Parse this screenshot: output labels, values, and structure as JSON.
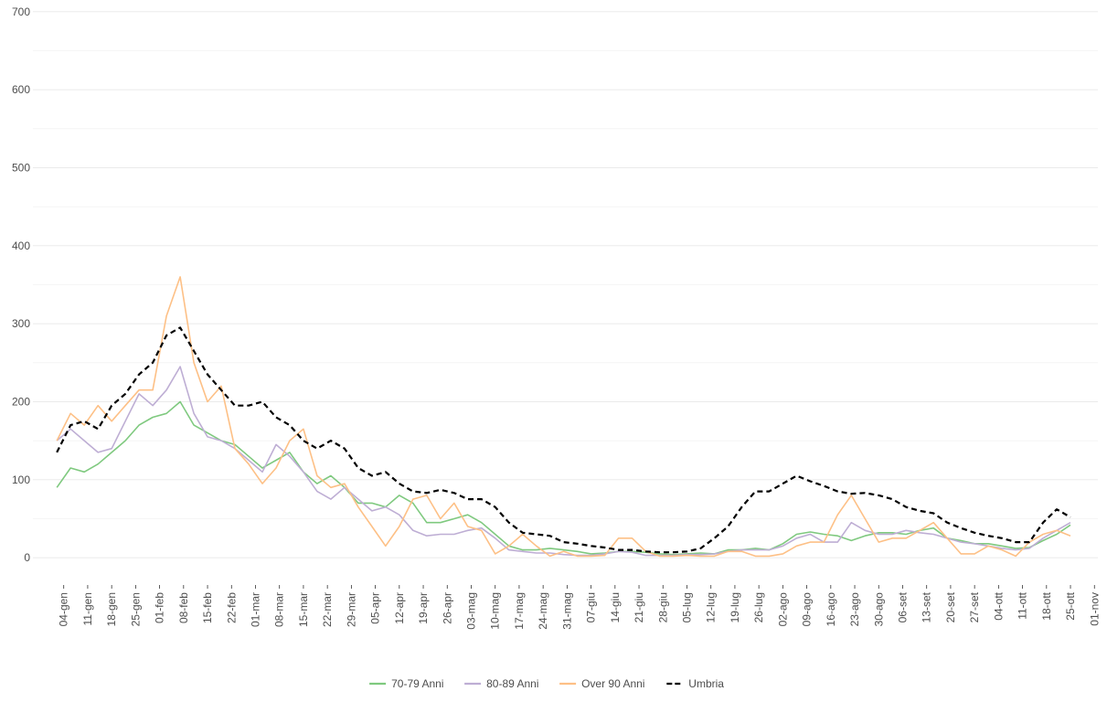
{
  "chart_data": {
    "type": "line",
    "x": [
      -2,
      2,
      6,
      10,
      14,
      18,
      22,
      26,
      30,
      34,
      38,
      42,
      46,
      50,
      54,
      58,
      62,
      66,
      70,
      74,
      78,
      82,
      86,
      90,
      94,
      98,
      102,
      106,
      110,
      114,
      118,
      122,
      126,
      130,
      134,
      138,
      142,
      146,
      150,
      154,
      158,
      162,
      166,
      170,
      174,
      178,
      182,
      186,
      190,
      194,
      198,
      202,
      206,
      210,
      214,
      218,
      222,
      226,
      230,
      234,
      238,
      242,
      246,
      250,
      254,
      258,
      262,
      266,
      270,
      274,
      278,
      282,
      286,
      290,
      294
    ],
    "series": [
      {
        "name": "70-79 Anni",
        "color": "#7fc97f",
        "linestyle": "solid",
        "values": [
          90,
          115,
          110,
          120,
          135,
          150,
          170,
          180,
          185,
          200,
          170,
          160,
          150,
          145,
          130,
          115,
          125,
          135,
          110,
          95,
          105,
          90,
          70,
          70,
          65,
          80,
          70,
          45,
          45,
          50,
          55,
          45,
          30,
          15,
          10,
          10,
          12,
          10,
          8,
          5,
          6,
          8,
          8,
          7,
          5,
          4,
          5,
          6,
          5,
          10,
          10,
          12,
          10,
          18,
          30,
          33,
          30,
          28,
          22,
          28,
          32,
          32,
          30,
          35,
          38,
          25,
          22,
          18,
          18,
          15,
          12,
          13,
          22,
          30,
          42
        ]
      },
      {
        "name": "80-89 Anni",
        "color": "#beaed4",
        "linestyle": "solid",
        "values": [
          150,
          165,
          150,
          135,
          140,
          175,
          210,
          195,
          215,
          245,
          185,
          155,
          150,
          140,
          125,
          110,
          145,
          130,
          110,
          85,
          75,
          90,
          75,
          60,
          65,
          55,
          35,
          28,
          30,
          30,
          35,
          38,
          25,
          10,
          8,
          6,
          6,
          4,
          3,
          3,
          5,
          8,
          7,
          3,
          3,
          3,
          4,
          4,
          5,
          8,
          10,
          10,
          10,
          15,
          25,
          30,
          20,
          20,
          45,
          35,
          30,
          30,
          35,
          32,
          30,
          25,
          20,
          18,
          15,
          12,
          10,
          12,
          25,
          35,
          45
        ]
      },
      {
        "name": "Over 90 Anni",
        "color": "#fdc086",
        "linestyle": "solid",
        "values": [
          150,
          185,
          170,
          195,
          175,
          195,
          215,
          215,
          310,
          360,
          250,
          200,
          220,
          140,
          120,
          95,
          115,
          150,
          165,
          105,
          90,
          95,
          65,
          40,
          15,
          40,
          75,
          80,
          50,
          70,
          40,
          35,
          5,
          15,
          30,
          15,
          2,
          8,
          2,
          2,
          3,
          25,
          25,
          8,
          2,
          2,
          3,
          2,
          2,
          8,
          8,
          2,
          2,
          5,
          15,
          20,
          20,
          55,
          80,
          50,
          20,
          25,
          25,
          35,
          45,
          25,
          5,
          5,
          15,
          10,
          2,
          20,
          30,
          35,
          28
        ]
      },
      {
        "name": "Umbria",
        "color": "#000000",
        "linestyle": "dashed",
        "values": [
          135,
          170,
          175,
          165,
          195,
          210,
          235,
          250,
          285,
          295,
          265,
          235,
          215,
          195,
          195,
          200,
          180,
          170,
          150,
          140,
          150,
          140,
          115,
          105,
          110,
          95,
          85,
          83,
          87,
          83,
          75,
          75,
          65,
          45,
          32,
          30,
          28,
          20,
          18,
          15,
          13,
          10,
          10,
          8,
          7,
          7,
          8,
          12,
          25,
          40,
          65,
          85,
          85,
          95,
          105,
          98,
          92,
          85,
          82,
          83,
          80,
          75,
          65,
          60,
          57,
          45,
          38,
          32,
          28,
          25,
          20,
          20,
          45,
          62,
          52
        ]
      }
    ],
    "xlim": [
      -9,
      302
    ],
    "xticks": [
      {
        "value": 0,
        "label": "04-gen"
      },
      {
        "value": 7,
        "label": "11-gen"
      },
      {
        "value": 14,
        "label": "18-gen"
      },
      {
        "value": 21,
        "label": "25-gen"
      },
      {
        "value": 28,
        "label": "01-feb"
      },
      {
        "value": 35,
        "label": "08-feb"
      },
      {
        "value": 42,
        "label": "15-feb"
      },
      {
        "value": 49,
        "label": "22-feb"
      },
      {
        "value": 56,
        "label": "01-mar"
      },
      {
        "value": 63,
        "label": "08-mar"
      },
      {
        "value": 70,
        "label": "15-mar"
      },
      {
        "value": 77,
        "label": "22-mar"
      },
      {
        "value": 84,
        "label": "29-mar"
      },
      {
        "value": 91,
        "label": "05-apr"
      },
      {
        "value": 98,
        "label": "12-apr"
      },
      {
        "value": 105,
        "label": "19-apr"
      },
      {
        "value": 112,
        "label": "26-apr"
      },
      {
        "value": 119,
        "label": "03-mag"
      },
      {
        "value": 126,
        "label": "10-mag"
      },
      {
        "value": 133,
        "label": "17-mag"
      },
      {
        "value": 140,
        "label": "24-mag"
      },
      {
        "value": 147,
        "label": "31-mag"
      },
      {
        "value": 154,
        "label": "07-giu"
      },
      {
        "value": 161,
        "label": "14-giu"
      },
      {
        "value": 168,
        "label": "21-giu"
      },
      {
        "value": 175,
        "label": "28-giu"
      },
      {
        "value": 182,
        "label": "05-lug"
      },
      {
        "value": 189,
        "label": "12-lug"
      },
      {
        "value": 196,
        "label": "19-lug"
      },
      {
        "value": 203,
        "label": "26-lug"
      },
      {
        "value": 210,
        "label": "02-ago"
      },
      {
        "value": 217,
        "label": "09-ago"
      },
      {
        "value": 224,
        "label": "16-ago"
      },
      {
        "value": 231,
        "label": "23-ago"
      },
      {
        "value": 238,
        "label": "30-ago"
      },
      {
        "value": 245,
        "label": "06-set"
      },
      {
        "value": 252,
        "label": "13-set"
      },
      {
        "value": 259,
        "label": "20-set"
      },
      {
        "value": 266,
        "label": "27-set"
      },
      {
        "value": 273,
        "label": "04-ott"
      },
      {
        "value": 280,
        "label": "11-ott"
      },
      {
        "value": 287,
        "label": "18-ott"
      },
      {
        "value": 294,
        "label": "25-ott"
      },
      {
        "value": 301,
        "label": "01-nov"
      }
    ],
    "ylim": [
      -35,
      715
    ],
    "yticks": [
      0,
      100,
      200,
      300,
      400,
      500,
      600,
      700
    ],
    "y_minor_ticks": [
      50,
      150,
      250,
      350,
      450,
      550,
      650
    ],
    "grid": true,
    "legend": "bottom"
  }
}
